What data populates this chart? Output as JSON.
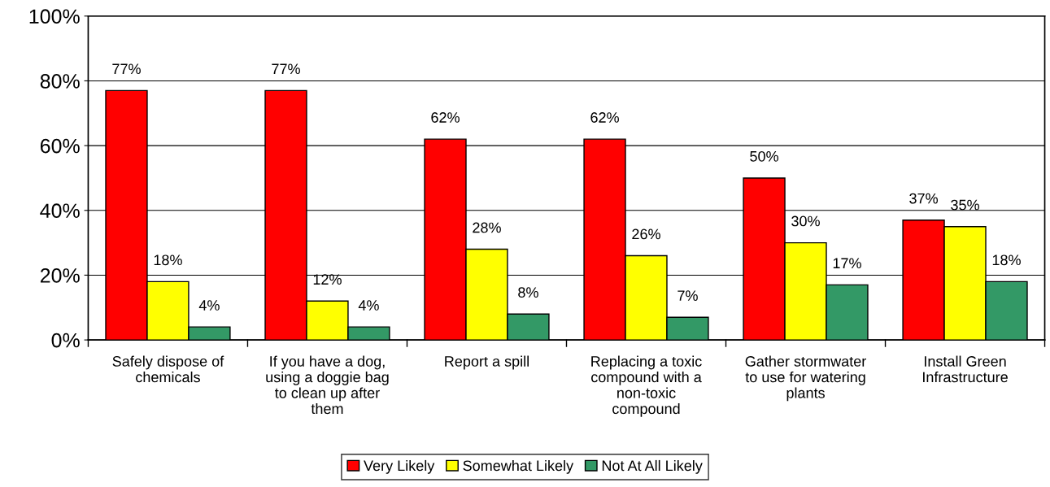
{
  "chart_data": {
    "type": "bar",
    "categories": [
      "Safely dispose of\nchemicals",
      "If you have a dog,\nusing a doggie bag\nto clean up after\nthem",
      "Report a spill",
      "Replacing a toxic\ncompound with a\nnon-toxic\ncompound",
      "Gather stormwater\nto use for watering\nplants",
      "Install Green\nInfrastructure"
    ],
    "series": [
      {
        "name": "Very Likely",
        "color": "#ff0000",
        "values": [
          77,
          77,
          62,
          62,
          50,
          37
        ],
        "value_labels": [
          "77%",
          "77%",
          "62%",
          "62%",
          "50%",
          "37%"
        ]
      },
      {
        "name": "Somewhat Likely",
        "color": "#ffff00",
        "values": [
          18,
          12,
          28,
          26,
          30,
          35
        ],
        "value_labels": [
          "18%",
          "12%",
          "28%",
          "26%",
          "30%",
          "35%"
        ]
      },
      {
        "name": "Not At All Likely",
        "color": "#339966",
        "values": [
          4,
          4,
          8,
          7,
          17,
          18
        ],
        "value_labels": [
          "4%",
          "4%",
          "8%",
          "7%",
          "17%",
          "18%"
        ]
      }
    ],
    "ylim": [
      0,
      100
    ],
    "yticks": [
      {
        "value": 0,
        "label": "0%"
      },
      {
        "value": 20,
        "label": "20%"
      },
      {
        "value": 40,
        "label": "40%"
      },
      {
        "value": 60,
        "label": "60%"
      },
      {
        "value": 80,
        "label": "80%"
      },
      {
        "value": 100,
        "label": "100%"
      }
    ],
    "grid": "y",
    "legend": "bottom"
  }
}
